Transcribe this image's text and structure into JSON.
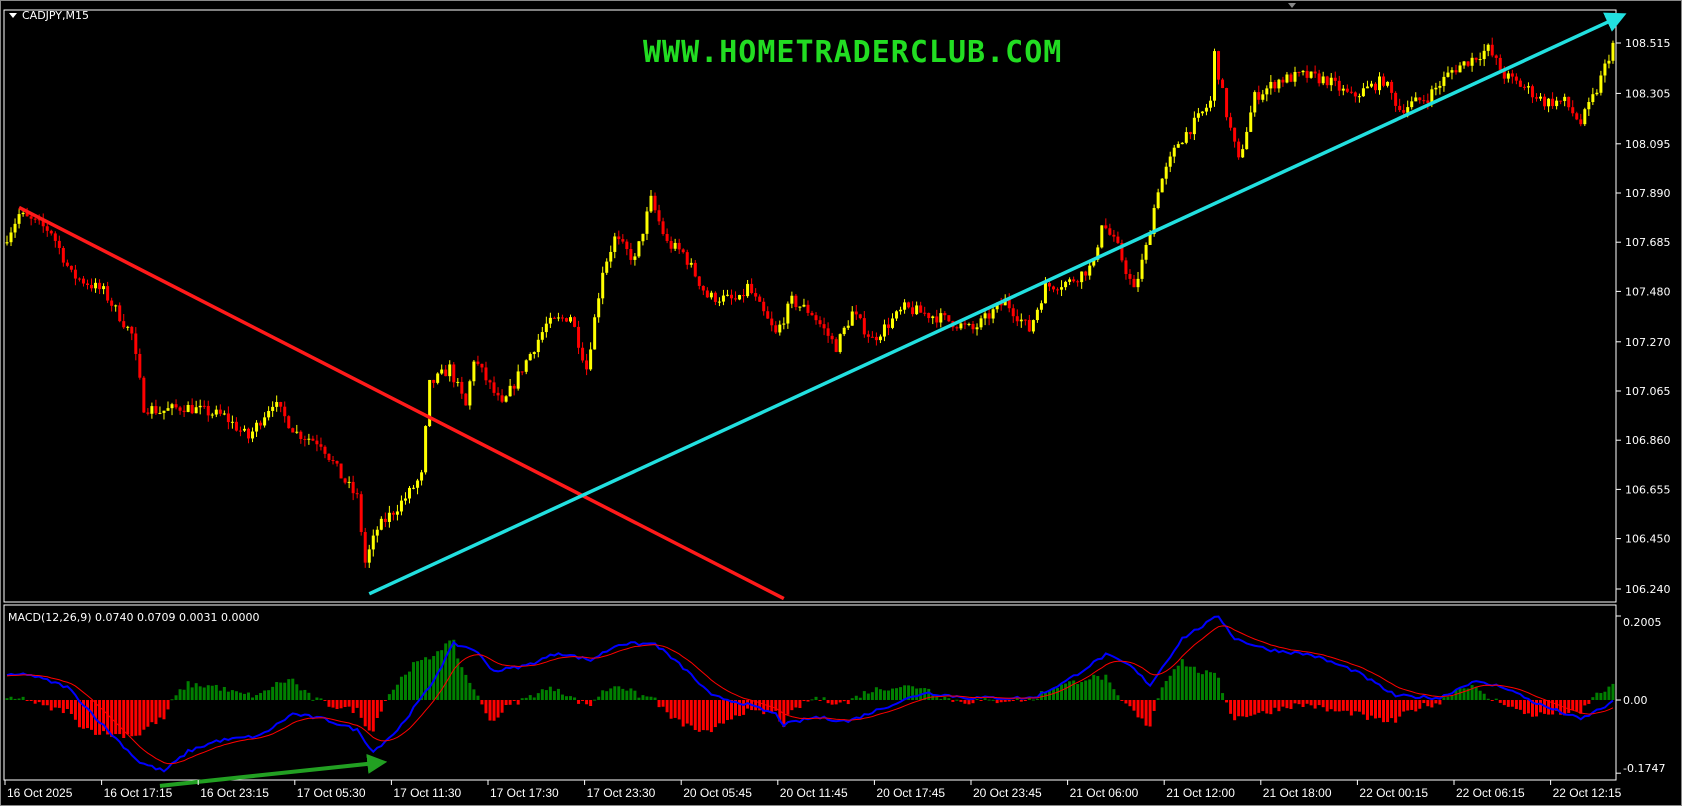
{
  "window": {
    "symbol_label": "CADJPY,M15",
    "watermark": "WWW.HOMETRADERCLUB.COM"
  },
  "chart_data": [
    {
      "type": "candlestick",
      "title": "CADJPY,M15",
      "price_ticks": [
        "108.515",
        "108.305",
        "108.095",
        "107.890",
        "107.685",
        "107.480",
        "107.270",
        "107.065",
        "106.860",
        "106.655",
        "106.450",
        "106.240"
      ],
      "ylim": [
        106.2,
        108.6
      ],
      "time_ticks": [
        "16 Oct 2025",
        "16 Oct 17:15",
        "16 Oct 23:15",
        "17 Oct 05:30",
        "17 Oct 11:30",
        "17 Oct 17:30",
        "17 Oct 23:30",
        "20 Oct 05:45",
        "20 Oct 11:45",
        "20 Oct 17:45",
        "20 Oct 23:45",
        "21 Oct 06:00",
        "21 Oct 12:00",
        "21 Oct 18:00",
        "22 Oct 00:15",
        "22 Oct 06:15",
        "22 Oct 12:15"
      ],
      "bars_per_time_tick": 24,
      "approx_close_path": [
        [
          0,
          107.68
        ],
        [
          4,
          107.8
        ],
        [
          12,
          107.73
        ],
        [
          17,
          107.55
        ],
        [
          25,
          107.48
        ],
        [
          32,
          107.3
        ],
        [
          35,
          107.0
        ],
        [
          39,
          106.98
        ],
        [
          45,
          107.0
        ],
        [
          55,
          106.96
        ],
        [
          61,
          106.87
        ],
        [
          67,
          107.02
        ],
        [
          73,
          106.89
        ],
        [
          79,
          106.85
        ],
        [
          84,
          106.71
        ],
        [
          88,
          106.62
        ],
        [
          90,
          106.35
        ],
        [
          93,
          106.49
        ],
        [
          100,
          106.62
        ],
        [
          104,
          106.71
        ],
        [
          106,
          107.09
        ],
        [
          111,
          107.16
        ],
        [
          115,
          107.0
        ],
        [
          117,
          107.2
        ],
        [
          124,
          107.0
        ],
        [
          129,
          107.16
        ],
        [
          135,
          107.34
        ],
        [
          141,
          107.38
        ],
        [
          145,
          107.16
        ],
        [
          149,
          107.57
        ],
        [
          152,
          107.7
        ],
        [
          157,
          107.61
        ],
        [
          161,
          107.86
        ],
        [
          165,
          107.68
        ],
        [
          169,
          107.64
        ],
        [
          175,
          107.46
        ],
        [
          183,
          107.44
        ],
        [
          185,
          107.5
        ],
        [
          192,
          107.3
        ],
        [
          196,
          107.44
        ],
        [
          201,
          107.39
        ],
        [
          207,
          107.25
        ],
        [
          211,
          107.39
        ],
        [
          216,
          107.28
        ],
        [
          224,
          107.41
        ],
        [
          233,
          107.37
        ],
        [
          241,
          107.32
        ],
        [
          249,
          107.44
        ],
        [
          255,
          107.32
        ],
        [
          259,
          107.5
        ],
        [
          265,
          107.52
        ],
        [
          271,
          107.59
        ],
        [
          273,
          107.77
        ],
        [
          277,
          107.66
        ],
        [
          281,
          107.48
        ],
        [
          284,
          107.66
        ],
        [
          287,
          107.91
        ],
        [
          292,
          108.1
        ],
        [
          297,
          108.2
        ],
        [
          300,
          108.27
        ],
        [
          301,
          108.47
        ],
        [
          304,
          108.22
        ],
        [
          307,
          108.02
        ],
        [
          311,
          108.29
        ],
        [
          317,
          108.36
        ],
        [
          323,
          108.38
        ],
        [
          329,
          108.36
        ],
        [
          335,
          108.29
        ],
        [
          343,
          108.36
        ],
        [
          347,
          108.24
        ],
        [
          354,
          108.29
        ],
        [
          360,
          108.4
        ],
        [
          365,
          108.45
        ],
        [
          369,
          108.49
        ],
        [
          373,
          108.38
        ],
        [
          379,
          108.32
        ],
        [
          383,
          108.27
        ],
        [
          388,
          108.27
        ],
        [
          392,
          108.18
        ],
        [
          396,
          108.32
        ],
        [
          400,
          108.51
        ]
      ],
      "bull_color": "#ffff00",
      "bear_color": "#ff0000",
      "trendlines": [
        {
          "color": "#ff1a1a",
          "from": [
            3,
            107.83
          ],
          "to": [
            193,
            106.2
          ]
        },
        {
          "color": "#22e0e0",
          "from": [
            90,
            106.22
          ],
          "to": [
            400,
            108.62
          ],
          "arrow": true
        }
      ]
    },
    {
      "type": "line",
      "title": "MACD(12,26,9) 0.0740 0.0709 0.0031 0.0000",
      "y_ticks": [
        "0.2005",
        "0.00",
        "-0.1747"
      ],
      "ylim": [
        -0.1747,
        0.2005
      ],
      "macd_path": [
        [
          0,
          0.057
        ],
        [
          5,
          0.062
        ],
        [
          15,
          0.031
        ],
        [
          25,
          -0.072
        ],
        [
          33,
          -0.149
        ],
        [
          39,
          -0.17
        ],
        [
          45,
          -0.123
        ],
        [
          52,
          -0.098
        ],
        [
          63,
          -0.085
        ],
        [
          71,
          -0.033
        ],
        [
          79,
          -0.046
        ],
        [
          87,
          -0.072
        ],
        [
          91,
          -0.123
        ],
        [
          97,
          -0.072
        ],
        [
          105,
          0.031
        ],
        [
          111,
          0.134
        ],
        [
          116,
          0.121
        ],
        [
          121,
          0.069
        ],
        [
          129,
          0.082
        ],
        [
          137,
          0.113
        ],
        [
          145,
          0.095
        ],
        [
          152,
          0.134
        ],
        [
          161,
          0.134
        ],
        [
          169,
          0.069
        ],
        [
          175,
          0.01
        ],
        [
          183,
          -0.008
        ],
        [
          191,
          -0.034
        ],
        [
          193,
          -0.059
        ],
        [
          201,
          -0.041
        ],
        [
          209,
          -0.051
        ],
        [
          217,
          -0.021
        ],
        [
          228,
          0.018
        ],
        [
          239,
          0.005
        ],
        [
          255,
          0.005
        ],
        [
          263,
          0.044
        ],
        [
          273,
          0.108
        ],
        [
          279,
          0.082
        ],
        [
          284,
          0.036
        ],
        [
          292,
          0.147
        ],
        [
          301,
          0.2005
        ],
        [
          305,
          0.147
        ],
        [
          313,
          0.121
        ],
        [
          324,
          0.108
        ],
        [
          335,
          0.069
        ],
        [
          345,
          0.01
        ],
        [
          356,
          0.005
        ],
        [
          364,
          0.044
        ],
        [
          372,
          0.031
        ],
        [
          380,
          -0.008
        ],
        [
          391,
          -0.046
        ],
        [
          400,
          0.0
        ]
      ],
      "main_color": "#0000ff",
      "signal_color": "#ff0000",
      "hist_pos_color": "#008000",
      "hist_neg_color": "#ff0000",
      "arrow": {
        "color": "#22a022",
        "from": [
          38,
          -0.205
        ],
        "to": [
          92,
          -0.15
        ]
      }
    }
  ]
}
